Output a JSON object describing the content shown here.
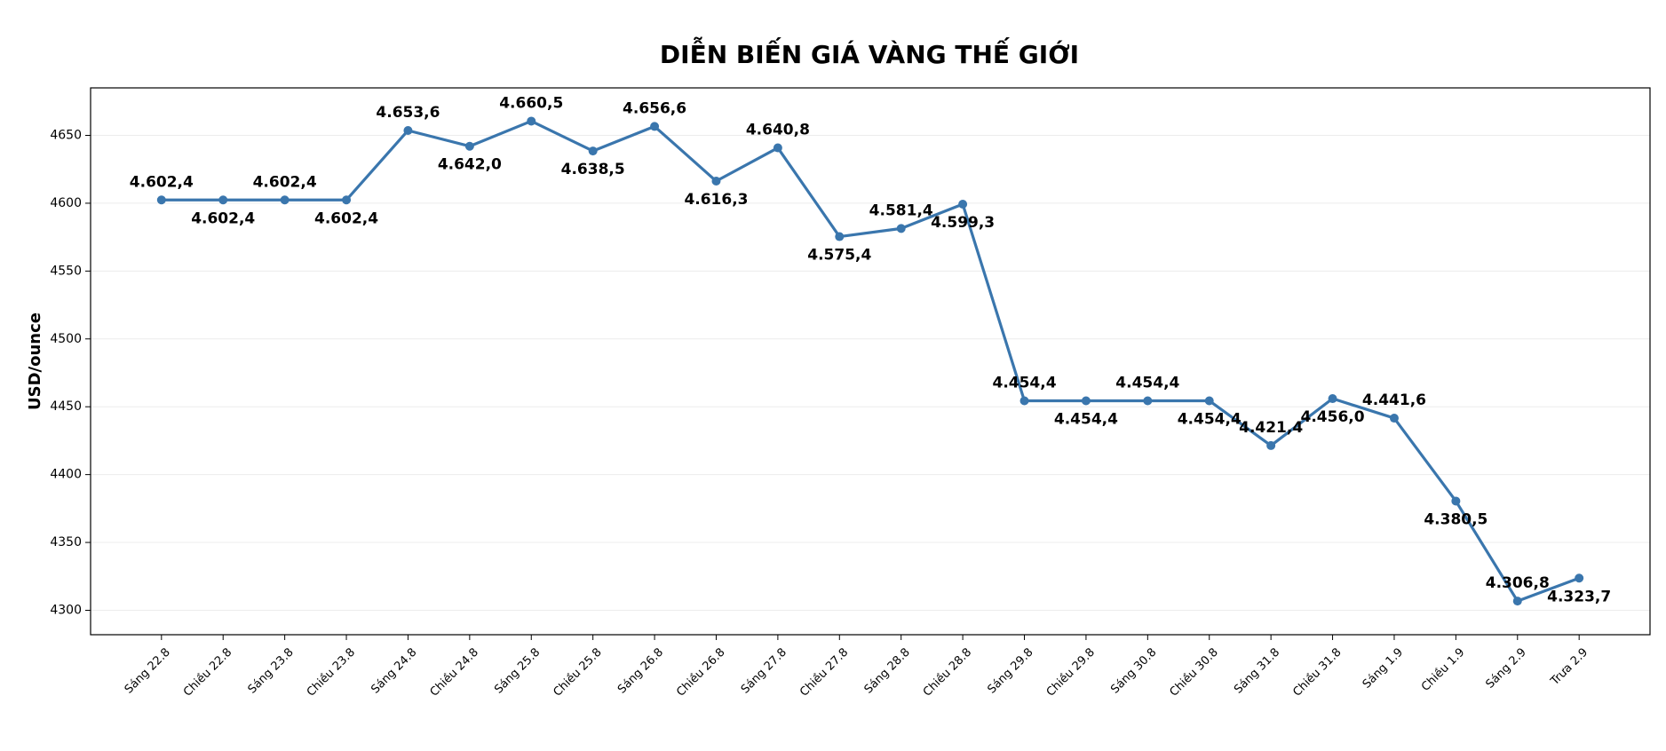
{
  "chart_data": {
    "type": "line",
    "title": "DIỄN BIẾN GIÁ VÀNG THẾ GIỚI",
    "y_label": "USD/ounce",
    "categories": [
      "Sáng 22.8",
      "Chiều 22.8",
      "Sáng 23.8",
      "Chiều 23.8",
      "Sáng 24.8",
      "Chiều 24.8",
      "Sáng 25.8",
      "Chiều 25.8",
      "Sáng 26.8",
      "Chiều 26.8",
      "Sáng 27.8",
      "Chiều 27.8",
      "Sáng 28.8",
      "Chiều 28.8",
      "Sáng 29.8",
      "Chiều 29.8",
      "Sáng 30.8",
      "Chiều 30.8",
      "Sáng 31.8",
      "Chiều 31.8",
      "Sáng 1.9",
      "Chiều 1.9",
      "Sáng 2.9",
      "Trưa 2.9"
    ],
    "values": [
      4602.4,
      4602.4,
      4602.4,
      4602.4,
      4653.6,
      4642.0,
      4660.5,
      4638.5,
      4656.6,
      4616.3,
      4640.8,
      4575.4,
      4581.4,
      4599.3,
      4454.4,
      4454.4,
      4454.4,
      4454.4,
      4421.4,
      4456.0,
      4441.6,
      4380.5,
      4306.8,
      4323.7
    ],
    "value_labels": [
      "4.602,4",
      "4.602,4",
      "4.602,4",
      "4.602,4",
      "4.653,6",
      "4.642,0",
      "4.660,5",
      "4.638,5",
      "4.656,6",
      "4.616,3",
      "4.640,8",
      "4.575,4",
      "4.581,4",
      "4.599,3",
      "4.454,4",
      "4.454,4",
      "4.454,4",
      "4.454,4",
      "4.421,4",
      "4.456,0",
      "4.441,6",
      "4.380,5",
      "4.306,8",
      "4.323,7"
    ],
    "color": "#3a76ad",
    "ylim": [
      4282,
      4685
    ],
    "yticks": [
      4300,
      4350,
      4400,
      4450,
      4500,
      4550,
      4600,
      4650
    ],
    "grid": true
  }
}
